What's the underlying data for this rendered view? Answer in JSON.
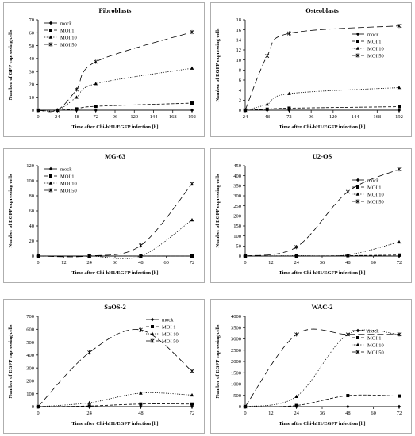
{
  "charts": [
    {
      "title": "Fibroblasts",
      "xlabel": "Time after Chi-hH1/EGFP infection [h]",
      "ylabel": "Number of GFP expressing cells",
      "xticks": [
        0,
        24,
        48,
        72,
        96,
        120,
        144,
        168,
        192
      ],
      "yticks": [
        0,
        10,
        20,
        30,
        40,
        50,
        60,
        70
      ],
      "legend_pos": "top-left"
    },
    {
      "title": "Osteoblasts",
      "xlabel": "Time after Chi-hH1/EGFP infection [h]",
      "ylabel": "Number of EGFP expressing cells",
      "xticks": [
        24,
        48,
        72,
        96,
        120,
        144,
        168,
        192
      ],
      "yticks": [
        0,
        2,
        4,
        6,
        8,
        10,
        12,
        14,
        16,
        18
      ],
      "legend_pos": "right"
    },
    {
      "title": "MG-63",
      "xlabel": "Time after Chi-hH1/EGFP infection [h]",
      "ylabel": "Number of EGFP expressing cells",
      "xticks": [
        0,
        12,
        24,
        36,
        48,
        60,
        72
      ],
      "yticks": [
        0,
        20,
        40,
        60,
        80,
        100,
        120
      ],
      "legend_pos": "top-left"
    },
    {
      "title": "U2-OS",
      "xlabel": "Time after Chi-hH1/EGFP infection [h]",
      "ylabel": "Number of EGFP expressing cells",
      "xticks": [
        0,
        12,
        24,
        36,
        48,
        60,
        72
      ],
      "yticks": [
        0,
        50,
        100,
        150,
        200,
        250,
        300,
        350,
        400,
        450
      ],
      "legend_pos": "right"
    },
    {
      "title": "SaOS-2",
      "xlabel": "Time after Chi-hH1/EGFP infection [h]",
      "ylabel": "Number of EGFP expressing cells",
      "xticks": [
        0,
        24,
        48,
        72
      ],
      "yticks": [
        0,
        100,
        200,
        300,
        400,
        500,
        600,
        700
      ],
      "legend_pos": "top-right"
    },
    {
      "title": "WAC-2",
      "xlabel": "Time after Chi-hH1/EGFP infection [h]",
      "ylabel": "Number of EGFP expressing cells",
      "xticks": [
        0,
        12,
        24,
        36,
        48,
        60,
        72
      ],
      "yticks": [
        0,
        500,
        1000,
        1500,
        2000,
        2500,
        3000,
        3500,
        4000
      ],
      "legend_pos": "right"
    }
  ],
  "chart_data": [
    {
      "type": "line",
      "title": "Fibroblasts",
      "xlabel": "Time after Chi-hH1/EGFP infection [h]",
      "ylabel": "Number of GFP expressing cells",
      "xlim": [
        0,
        192
      ],
      "ylim": [
        0,
        70
      ],
      "grid": false,
      "x": [
        0,
        24,
        48,
        72,
        192
      ],
      "series": [
        {
          "name": "mock",
          "values": [
            0,
            0,
            0,
            0,
            0
          ]
        },
        {
          "name": "MOI 1",
          "values": [
            0,
            0,
            1,
            3,
            5.5
          ]
        },
        {
          "name": "MOI 10",
          "values": [
            0,
            0,
            10,
            20.5,
            32.5
          ]
        },
        {
          "name": "MOI 50",
          "values": [
            0,
            0,
            16,
            37.5,
            60.5
          ]
        }
      ]
    },
    {
      "type": "line",
      "title": "Osteoblasts",
      "xlabel": "Time after Chi-hH1/EGFP infection [h]",
      "ylabel": "Number of EGFP expressing cells",
      "xlim": [
        24,
        192
      ],
      "ylim": [
        0,
        18
      ],
      "grid": false,
      "x": [
        24,
        48,
        72,
        192
      ],
      "series": [
        {
          "name": "mock",
          "values": [
            0,
            0,
            0,
            0
          ]
        },
        {
          "name": "MOI 1",
          "values": [
            0,
            0.2,
            0.4,
            0.7
          ]
        },
        {
          "name": "MOI 10",
          "values": [
            0,
            1.2,
            3.3,
            4.5
          ]
        },
        {
          "name": "MOI 50",
          "values": [
            0,
            10.8,
            15.3,
            16.8
          ]
        }
      ]
    },
    {
      "type": "line",
      "title": "MG-63",
      "xlabel": "Time after Chi-hH1/EGFP infection [h]",
      "ylabel": "Number of EGFP expressing cells",
      "xlim": [
        0,
        72
      ],
      "ylim": [
        0,
        120
      ],
      "grid": false,
      "x": [
        0,
        24,
        48,
        72
      ],
      "series": [
        {
          "name": "mock",
          "values": [
            0,
            0,
            0,
            0
          ]
        },
        {
          "name": "MOI 1",
          "values": [
            0,
            0,
            0,
            0
          ]
        },
        {
          "name": "MOI 10",
          "values": [
            0,
            0,
            0,
            48
          ]
        },
        {
          "name": "MOI 50",
          "values": [
            0,
            0,
            14,
            96
          ]
        }
      ]
    },
    {
      "type": "line",
      "title": "U2-OS",
      "xlabel": "Time after Chi-hH1/EGFP infection [h]",
      "ylabel": "Number of EGFP expressing cells",
      "xlim": [
        0,
        72
      ],
      "ylim": [
        0,
        450
      ],
      "grid": false,
      "x": [
        0,
        24,
        48,
        72
      ],
      "series": [
        {
          "name": "mock",
          "values": [
            0,
            0,
            0,
            0
          ]
        },
        {
          "name": "MOI 1",
          "values": [
            0,
            0,
            2,
            5
          ]
        },
        {
          "name": "MOI 10",
          "values": [
            0,
            2,
            6,
            70
          ]
        },
        {
          "name": "MOI 50",
          "values": [
            0,
            45,
            320,
            432
          ]
        }
      ]
    },
    {
      "type": "line",
      "title": "SaOS-2",
      "xlabel": "Time after Chi-hH1/EGFP infection [h]",
      "ylabel": "Number of EGFP expressing cells",
      "xlim": [
        0,
        72
      ],
      "ylim": [
        0,
        700
      ],
      "grid": false,
      "x": [
        0,
        24,
        48,
        72
      ],
      "series": [
        {
          "name": "mock",
          "values": [
            0,
            0,
            0,
            0
          ]
        },
        {
          "name": "MOI 1",
          "values": [
            0,
            5,
            20,
            20
          ]
        },
        {
          "name": "MOI 10",
          "values": [
            0,
            30,
            105,
            90
          ]
        },
        {
          "name": "MOI 50",
          "values": [
            0,
            420,
            595,
            275
          ]
        }
      ]
    },
    {
      "type": "line",
      "title": "WAC-2",
      "xlabel": "Time after Chi-hH1/EGFP infection [h]",
      "ylabel": "Number of EGFP expressing cells",
      "xlim": [
        0,
        72
      ],
      "ylim": [
        0,
        4000
      ],
      "grid": false,
      "x": [
        0,
        24,
        48,
        72
      ],
      "series": [
        {
          "name": "mock",
          "values": [
            0,
            0,
            0,
            0
          ]
        },
        {
          "name": "MOI 1",
          "values": [
            0,
            50,
            490,
            470
          ]
        },
        {
          "name": "MOI 10",
          "values": [
            0,
            450,
            3200,
            3200
          ]
        },
        {
          "name": "MOI 50",
          "values": [
            0,
            3200,
            3200,
            3200
          ]
        }
      ]
    }
  ]
}
